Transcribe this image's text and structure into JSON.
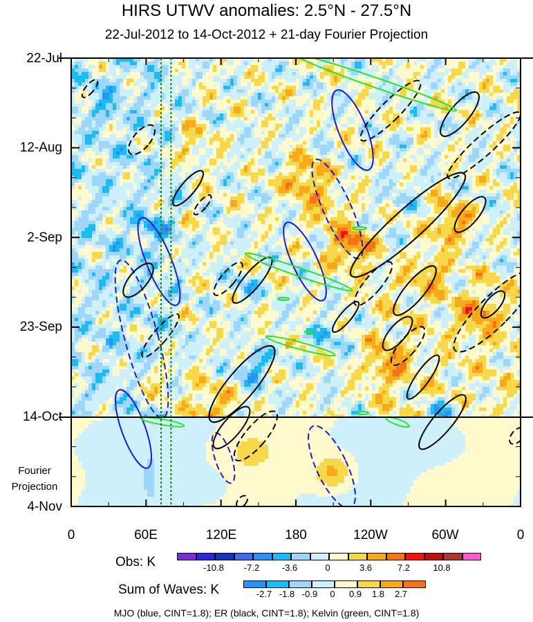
{
  "chart_data": {
    "type": "heatmap",
    "title": "HIRS UTWV anomalies: 2.5°N - 27.5°N",
    "subtitle": "22-Jul-2012 to 14-Oct-2012 + 21-day Fourier Projection",
    "y_ticks": [
      "22-Jul",
      "12-Aug",
      "2-Sep",
      "23-Sep",
      "14-Oct",
      "4-Nov"
    ],
    "y_projection_label": [
      "Fourier",
      "Projection"
    ],
    "x_ticks": [
      "0",
      "60E",
      "120E",
      "180",
      "120W",
      "60W",
      "0"
    ],
    "x_range_degrees_east": [
      0,
      360
    ],
    "time_range": [
      "22-Jul-2012",
      "4-Nov-2012"
    ],
    "observation_end": "14-Oct-2012",
    "reference_longitudes_dotted": [
      72,
      80
    ],
    "obs_colorbar": {
      "label": "Obs: K",
      "tick_labels": [
        "-10.8",
        "-7.2",
        "-3.6",
        "0",
        "3.6",
        "7.2",
        "10.8"
      ],
      "colors": [
        "#7a2fd6",
        "#2a2ad4",
        "#0f39b8",
        "#3d6fe6",
        "#2b93ef",
        "#1cbcf2",
        "#9ed7f7",
        "#cdf0fb",
        "#fffacd",
        "#f6d84a",
        "#f7a91a",
        "#f4741a",
        "#ee1212",
        "#b81212",
        "#a9372d",
        "#f35ec8"
      ]
    },
    "wave_colorbar": {
      "label": "Sum of Waves: K",
      "tick_labels": [
        "-2.7",
        "-1.8",
        "-0.9",
        "0",
        "0.9",
        "1.8",
        "2.7"
      ],
      "colors": [
        "#2b93ef",
        "#1cbcf2",
        "#9ed7f7",
        "#cdf0fb",
        "#fffacd",
        "#f6d84a",
        "#f7a91a",
        "#f4741a"
      ]
    },
    "contour_legend": "MJO (blue, CINT=1.8); ER (black, CINT=1.8); Kelvin (green, CINT=1.8)",
    "series": [
      {
        "name": "MJO",
        "color": "#1a1ad0",
        "contour_interval": 1.8
      },
      {
        "name": "ER",
        "color": "#000000",
        "contour_interval": 1.8
      },
      {
        "name": "Kelvin",
        "color": "#2ee02e",
        "contour_interval": 1.8
      }
    ]
  }
}
